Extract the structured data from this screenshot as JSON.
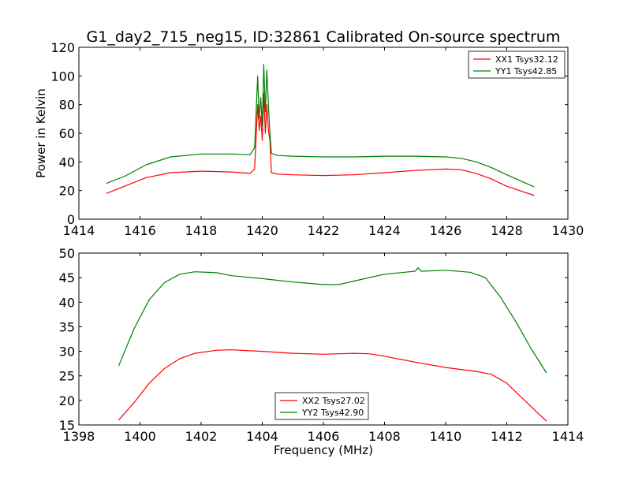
{
  "title": "G1_day2_715_neg15, ID:32861 Calibrated On-source spectrum",
  "xlabel": "Frequency (MHz)",
  "chart_data": [
    {
      "type": "line",
      "title": "G1_day2_715_neg15, ID:32861 Calibrated On-source spectrum",
      "xlabel": "",
      "ylabel": "Power in Kelvin",
      "xlim": [
        1414,
        1430
      ],
      "ylim": [
        0,
        120
      ],
      "xticks": [
        1414,
        1416,
        1418,
        1420,
        1422,
        1424,
        1426,
        1428,
        1430
      ],
      "yticks": [
        0,
        20,
        40,
        60,
        80,
        100,
        120
      ],
      "grid": false,
      "legend_position": "top-right",
      "series": [
        {
          "name": "XX1 Tsys32.12",
          "color": "#ff0000",
          "x": [
            1414.9,
            1415.5,
            1416.2,
            1417.0,
            1418.0,
            1419.0,
            1419.6,
            1419.75,
            1419.85,
            1419.9,
            1419.95,
            1420.0,
            1420.05,
            1420.1,
            1420.15,
            1420.2,
            1420.25,
            1420.3,
            1420.5,
            1421.0,
            1422.0,
            1423.0,
            1424.0,
            1425.0,
            1426.0,
            1426.5,
            1427.0,
            1427.5,
            1428.0,
            1428.9
          ],
          "y": [
            18,
            23,
            29,
            32.5,
            33.5,
            33,
            32,
            35,
            80,
            62,
            72,
            55,
            88,
            60,
            80,
            62,
            55,
            32.5,
            31.5,
            31,
            30.5,
            31,
            32.5,
            34,
            35,
            34.5,
            32,
            28,
            23,
            16.5
          ]
        },
        {
          "name": "YY1 Tsys42.85",
          "color": "#008000",
          "x": [
            1414.9,
            1415.5,
            1416.2,
            1417.0,
            1418.0,
            1419.0,
            1419.6,
            1419.75,
            1419.85,
            1419.9,
            1419.95,
            1420.0,
            1420.05,
            1420.1,
            1420.15,
            1420.2,
            1420.25,
            1420.3,
            1420.5,
            1421.0,
            1422.0,
            1423.0,
            1424.0,
            1425.0,
            1426.0,
            1426.5,
            1427.0,
            1427.5,
            1428.0,
            1428.9
          ],
          "y": [
            25,
            30,
            38,
            43.5,
            45.5,
            45.5,
            45,
            50,
            100,
            70,
            85,
            65,
            108,
            75,
            104,
            80,
            60,
            46,
            44.5,
            44,
            43.5,
            43.5,
            44,
            44,
            43.5,
            42.5,
            40,
            36,
            31,
            22.5
          ]
        }
      ]
    },
    {
      "type": "line",
      "title": "",
      "xlabel": "Frequency (MHz)",
      "ylabel": "",
      "xlim": [
        1398,
        1414
      ],
      "ylim": [
        15,
        50
      ],
      "xticks": [
        1398,
        1400,
        1402,
        1404,
        1406,
        1408,
        1410,
        1412,
        1414
      ],
      "yticks": [
        15,
        20,
        25,
        30,
        35,
        40,
        45,
        50
      ],
      "grid": false,
      "legend_position": "bottom-center",
      "series": [
        {
          "name": "XX2 Tsys27.02",
          "color": "#ff0000",
          "x": [
            1399.3,
            1399.8,
            1400.3,
            1400.8,
            1401.3,
            1401.8,
            1402.5,
            1403.0,
            1404.0,
            1405.0,
            1406.0,
            1406.5,
            1407.0,
            1407.5,
            1408.0,
            1409.0,
            1410.0,
            1411.0,
            1411.5,
            1412.0,
            1412.5,
            1413.0,
            1413.3
          ],
          "y": [
            16,
            19.5,
            23.5,
            26.5,
            28.5,
            29.6,
            30.2,
            30.3,
            30,
            29.6,
            29.4,
            29.5,
            29.6,
            29.5,
            29,
            27.8,
            26.7,
            25.9,
            25.3,
            23.5,
            20.5,
            17.5,
            15.8
          ]
        },
        {
          "name": "YY2 Tsys42.90",
          "color": "#008000",
          "x": [
            1399.3,
            1399.8,
            1400.3,
            1400.8,
            1401.3,
            1401.8,
            1402.5,
            1403.0,
            1404.0,
            1405.0,
            1406.0,
            1406.5,
            1407.0,
            1408.0,
            1409.0,
            1409.1,
            1409.2,
            1410.0,
            1410.8,
            1411.3,
            1411.8,
            1412.3,
            1412.8,
            1413.3
          ],
          "y": [
            27,
            34.5,
            40.5,
            44,
            45.7,
            46.2,
            46,
            45.4,
            44.8,
            44.1,
            43.6,
            43.6,
            44.3,
            45.7,
            46.3,
            47,
            46.3,
            46.5,
            46.1,
            45,
            41,
            36,
            30.5,
            25.6
          ]
        }
      ]
    }
  ]
}
